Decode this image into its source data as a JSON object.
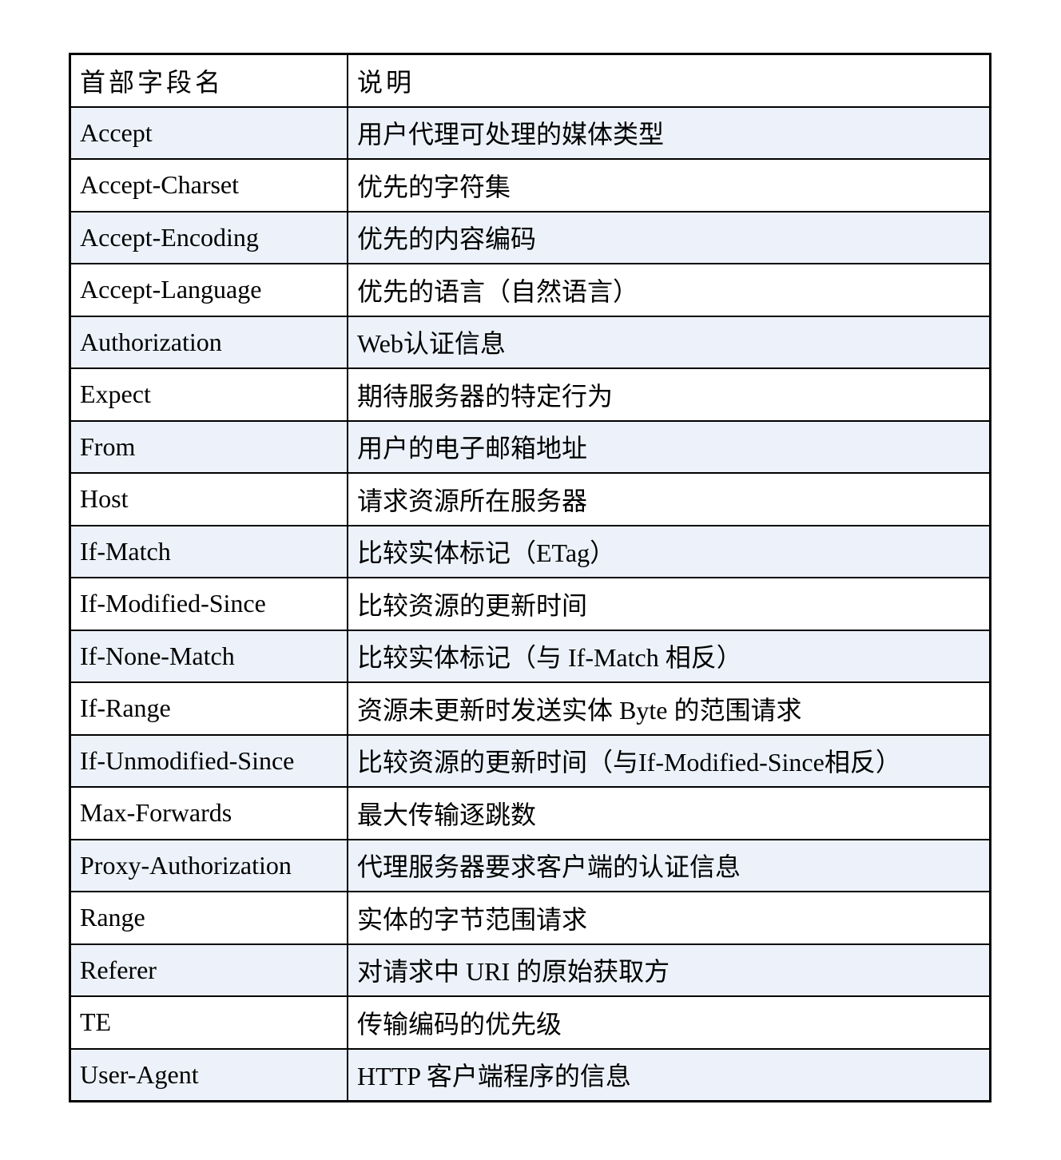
{
  "table": {
    "headers": [
      "首部字段名",
      "说明"
    ],
    "row_shading": "#edf2fa",
    "rows": [
      [
        "Accept",
        "用户代理可处理的媒体类型"
      ],
      [
        "Accept-Charset",
        "优先的字符集"
      ],
      [
        "Accept-Encoding",
        "优先的内容编码"
      ],
      [
        "Accept-Language",
        "优先的语言（自然语言）"
      ],
      [
        "Authorization",
        "Web认证信息"
      ],
      [
        "Expect",
        "期待服务器的特定行为"
      ],
      [
        "From",
        "用户的电子邮箱地址"
      ],
      [
        "Host",
        "请求资源所在服务器"
      ],
      [
        "If-Match",
        "比较实体标记（ETag）"
      ],
      [
        "If-Modified-Since",
        "比较资源的更新时间"
      ],
      [
        "If-None-Match",
        "比较实体标记（与 If-Match 相反）"
      ],
      [
        "If-Range",
        "资源未更新时发送实体 Byte 的范围请求"
      ],
      [
        "If-Unmodified-Since",
        "比较资源的更新时间（与If-Modified-Since相反）"
      ],
      [
        "Max-Forwards",
        "最大传输逐跳数"
      ],
      [
        "Proxy-Authorization",
        "代理服务器要求客户端的认证信息"
      ],
      [
        "Range",
        "实体的字节范围请求"
      ],
      [
        "Referer",
        "对请求中 URI 的原始获取方"
      ],
      [
        "TE",
        "传输编码的优先级"
      ],
      [
        "User-Agent",
        "HTTP 客户端程序的信息"
      ]
    ]
  }
}
